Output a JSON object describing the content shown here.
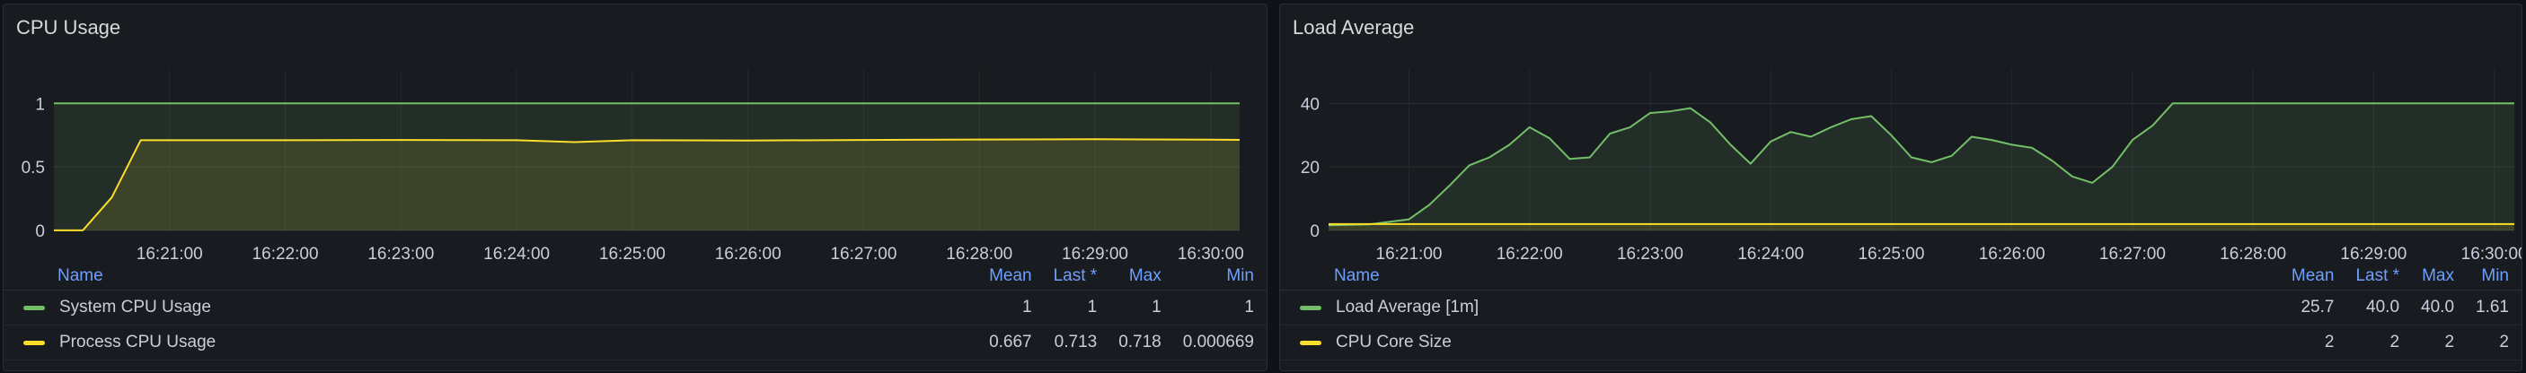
{
  "panels": [
    {
      "title": "CPU Usage",
      "legend": {
        "headers": [
          "Name",
          "Mean",
          "Last *",
          "Max",
          "Min"
        ],
        "rows": [
          {
            "name": "System CPU Usage",
            "color": "#73bf69",
            "mean": "1",
            "last": "1",
            "max": "1",
            "min": "1"
          },
          {
            "name": "Process CPU Usage",
            "color": "#fade2a",
            "mean": "0.667",
            "last": "0.713",
            "max": "0.718",
            "min": "0.000669"
          }
        ]
      }
    },
    {
      "title": "Load Average",
      "legend": {
        "headers": [
          "Name",
          "Mean",
          "Last *",
          "Max",
          "Min"
        ],
        "rows": [
          {
            "name": "Load Average [1m]",
            "color": "#73bf69",
            "mean": "25.7",
            "last": "40.0",
            "max": "40.0",
            "min": "1.61"
          },
          {
            "name": "CPU Core Size",
            "color": "#fade2a",
            "mean": "2",
            "last": "2",
            "max": "2",
            "min": "2"
          }
        ]
      }
    }
  ],
  "chart_data": [
    {
      "type": "area",
      "title": "CPU Usage",
      "x": [
        "16:20:00",
        "16:20:15",
        "16:20:30",
        "16:20:45",
        "16:21:00",
        "16:22:00",
        "16:23:00",
        "16:24:00",
        "16:24:30",
        "16:25:00",
        "16:26:00",
        "16:27:00",
        "16:28:00",
        "16:29:00",
        "16:30:00",
        "16:30:15"
      ],
      "xticks": [
        "16:21:00",
        "16:22:00",
        "16:23:00",
        "16:24:00",
        "16:25:00",
        "16:26:00",
        "16:27:00",
        "16:28:00",
        "16:29:00",
        "16:30:00"
      ],
      "yticks": [
        "0",
        "0.5",
        "1"
      ],
      "ylim": [
        0,
        1.2
      ],
      "series": [
        {
          "name": "System CPU Usage",
          "color": "#73bf69",
          "values": [
            1,
            1,
            1,
            1,
            1,
            1,
            1,
            1,
            1,
            1,
            1,
            1,
            1,
            1,
            1,
            1
          ]
        },
        {
          "name": "Process CPU Usage",
          "color": "#fade2a",
          "values": [
            0.000669,
            0.000669,
            0.26,
            0.71,
            0.71,
            0.71,
            0.712,
            0.71,
            0.695,
            0.71,
            0.708,
            0.712,
            0.716,
            0.718,
            0.715,
            0.713
          ]
        }
      ]
    },
    {
      "type": "area",
      "title": "Load Average",
      "x": [
        "16:20:20",
        "16:20:40",
        "16:21:00",
        "16:21:10",
        "16:21:20",
        "16:21:30",
        "16:21:40",
        "16:21:50",
        "16:22:00",
        "16:22:10",
        "16:22:20",
        "16:22:30",
        "16:22:40",
        "16:22:50",
        "16:23:00",
        "16:23:10",
        "16:23:20",
        "16:23:30",
        "16:23:40",
        "16:23:50",
        "16:24:00",
        "16:24:10",
        "16:24:20",
        "16:24:30",
        "16:24:40",
        "16:24:50",
        "16:25:00",
        "16:25:10",
        "16:25:20",
        "16:25:30",
        "16:25:40",
        "16:25:50",
        "16:26:00",
        "16:26:10",
        "16:26:20",
        "16:26:30",
        "16:26:40",
        "16:26:50",
        "16:27:00",
        "16:27:10",
        "16:27:20",
        "16:27:30",
        "16:27:40",
        "16:27:50",
        "16:28:00",
        "16:28:10",
        "16:28:20",
        "16:28:30",
        "16:28:40",
        "16:28:50",
        "16:29:00",
        "16:29:10",
        "16:29:20",
        "16:29:30",
        "16:29:40",
        "16:29:50",
        "16:30:00",
        "16:30:10"
      ],
      "xticks": [
        "16:21:00",
        "16:22:00",
        "16:23:00",
        "16:24:00",
        "16:25:00",
        "16:26:00",
        "16:27:00",
        "16:28:00",
        "16:29:00",
        "16:30:00"
      ],
      "yticks": [
        "0",
        "20",
        "40"
      ],
      "ylim": [
        0,
        48
      ],
      "series": [
        {
          "name": "Load Average [1m]",
          "color": "#73bf69",
          "values": [
            1.61,
            1.9,
            3.5,
            8,
            14,
            20.5,
            23,
            27,
            32.5,
            29,
            22.5,
            23,
            30.5,
            32.5,
            37,
            37.5,
            38.5,
            34,
            27,
            21,
            28,
            31,
            29.5,
            32.5,
            35,
            36,
            30,
            23,
            21.5,
            23.5,
            29.5,
            28.5,
            27,
            26,
            22,
            17,
            15,
            20,
            28.5,
            33,
            40,
            40,
            40,
            40,
            40,
            40,
            40,
            40,
            40,
            40,
            40,
            40,
            40,
            40,
            40,
            40,
            40,
            40
          ]
        },
        {
          "name": "CPU Core Size",
          "color": "#fade2a",
          "values": [
            2,
            2,
            2,
            2,
            2,
            2,
            2,
            2,
            2,
            2,
            2,
            2,
            2,
            2,
            2,
            2,
            2,
            2,
            2,
            2,
            2,
            2,
            2,
            2,
            2,
            2,
            2,
            2,
            2,
            2,
            2,
            2,
            2,
            2,
            2,
            2,
            2,
            2,
            2,
            2,
            2,
            2,
            2,
            2,
            2,
            2,
            2,
            2,
            2,
            2,
            2,
            2,
            2,
            2,
            2,
            2,
            2,
            2
          ]
        }
      ]
    }
  ]
}
